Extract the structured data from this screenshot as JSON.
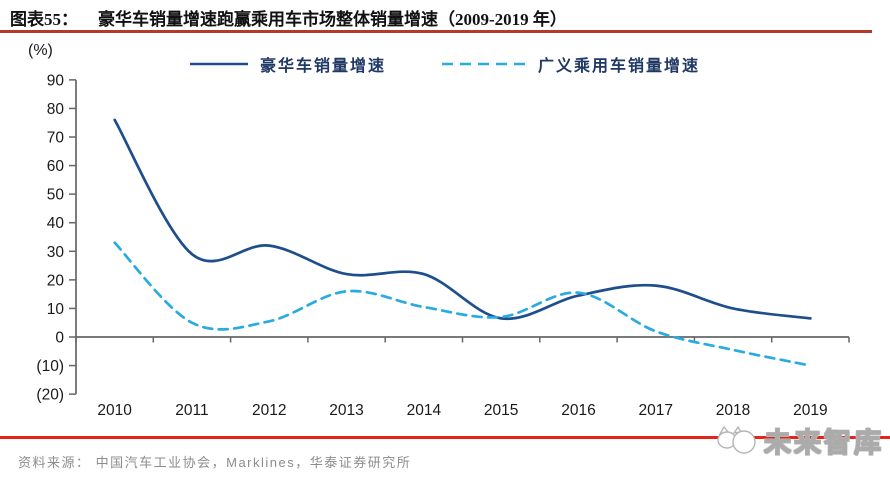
{
  "header": {
    "figure_label": "图表55：",
    "figure_title": "豪华车销量增速跑赢乘用车市场整体销量增速（2009-2019 年）"
  },
  "chart_data": {
    "type": "line",
    "title": "豪华车销量增速跑赢乘用车市场整体销量增速（2009-2019年）",
    "unit_label": "(%)",
    "categories": [
      "2010",
      "2011",
      "2012",
      "2013",
      "2014",
      "2015",
      "2016",
      "2017",
      "2018",
      "2019"
    ],
    "series": [
      {
        "name": "豪华车销量增速",
        "line_style": "solid",
        "color": "#1F4E8C",
        "values": [
          76,
          29,
          32,
          22,
          22,
          6.5,
          14.5,
          18,
          10,
          6.5
        ]
      },
      {
        "name": "广义乘用车销量增速",
        "line_style": "dashed",
        "color": "#29ABE2",
        "values": [
          33,
          5,
          5.5,
          16,
          10.5,
          7,
          15.5,
          2,
          -4.5,
          -10
        ]
      }
    ],
    "ylim": [
      -20,
      90
    ],
    "ytick_step": 10,
    "negative_label_format": "parentheses",
    "legend_position": "top-center",
    "grid": false
  },
  "footer": {
    "source_text": "资料来源： 中国汽车工业协会，Marklines，华泰证券研究所",
    "logo_text": "未来智库"
  },
  "colors": {
    "title_underline": "#B23A2B",
    "separator_line": "#E8231A",
    "axis": "#666666",
    "tick_label": "#1a1a1a",
    "legend_text": "#1F3864",
    "source_text": "#8C8C8C"
  }
}
